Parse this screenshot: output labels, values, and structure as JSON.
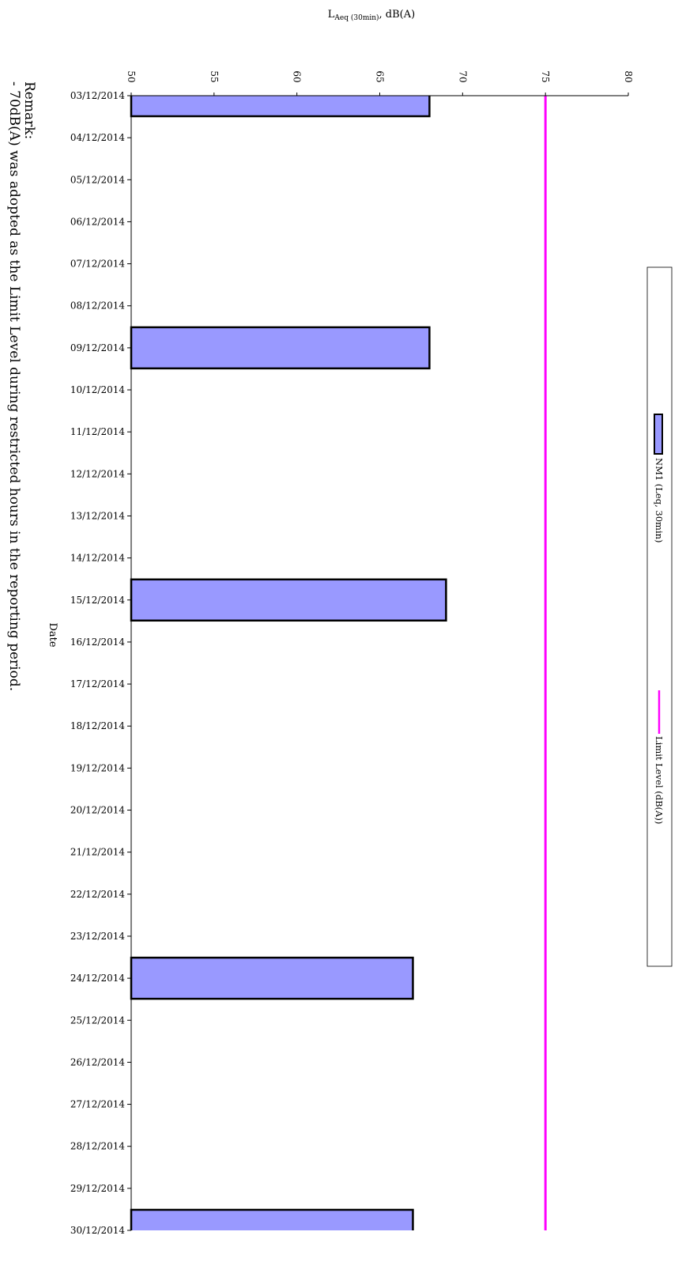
{
  "chart_data": {
    "type": "bar",
    "orientation": "horizontal",
    "xlabel_main": "L",
    "xlabel_sub": "Aeq (30min)",
    "xlabel_suffix": ", dB(A)",
    "ylabel": "Date",
    "xlim": [
      50,
      80
    ],
    "xticks": [
      "50",
      "55",
      "60",
      "65",
      "70",
      "75",
      "80"
    ],
    "categories": [
      "03/12/2014",
      "04/12/2014",
      "05/12/2014",
      "06/12/2014",
      "07/12/2014",
      "08/12/2014",
      "09/12/2014",
      "10/12/2014",
      "11/12/2014",
      "12/12/2014",
      "13/12/2014",
      "14/12/2014",
      "15/12/2014",
      "16/12/2014",
      "17/12/2014",
      "18/12/2014",
      "19/12/2014",
      "20/12/2014",
      "21/12/2014",
      "22/12/2014",
      "23/12/2014",
      "24/12/2014",
      "25/12/2014",
      "26/12/2014",
      "27/12/2014",
      "28/12/2014",
      "29/12/2014",
      "30/12/2014"
    ],
    "series": [
      {
        "name": "NM1 (Leq, 30min)",
        "color": "#9999ff",
        "values": [
          68,
          null,
          null,
          null,
          null,
          null,
          68,
          null,
          null,
          null,
          null,
          null,
          69,
          null,
          null,
          null,
          null,
          null,
          null,
          null,
          null,
          67,
          null,
          null,
          null,
          null,
          null,
          67
        ]
      },
      {
        "name": "Limit Level (dB(A))",
        "color": "#ff00ff",
        "type": "line",
        "constant": 75
      }
    ],
    "grid": false,
    "legend_position": "right"
  },
  "remark": {
    "title": "Remark:",
    "text": "- 70dB(A) was adopted as the Limit Level during restricted hours in the reporting period."
  }
}
